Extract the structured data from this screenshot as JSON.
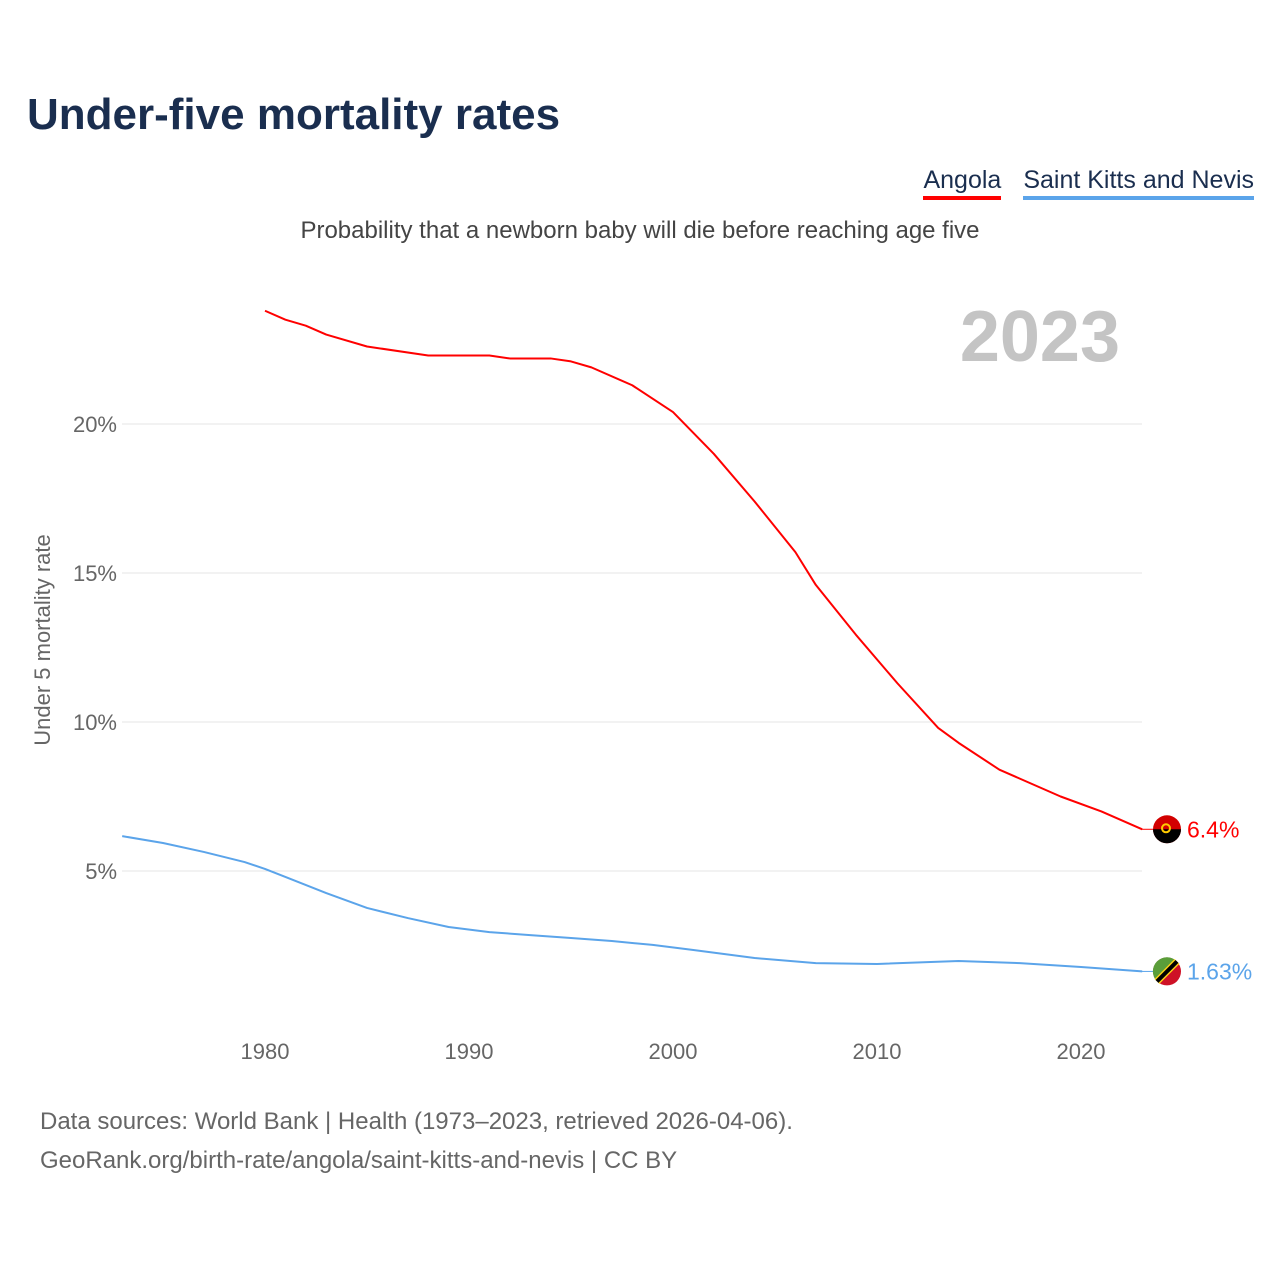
{
  "title": "Under-five mortality rates",
  "subtitle": "Probability that a newborn baby will die before reaching age five",
  "year_label": "2023",
  "sources": [
    "Data sources: World Bank | Health (1973–2023, retrieved 2026-04-06).",
    "GeoRank.org/birth-rate/angola/saint-kitts-and-nevis | CC BY"
  ],
  "chart_data": {
    "type": "line",
    "title": "Under-five mortality rates",
    "xlabel": "",
    "ylabel": "Under 5 mortality rate",
    "xlim": [
      1973,
      2023
    ],
    "ylim": [
      0,
      23.8
    ],
    "xticks": [
      1980,
      1990,
      2000,
      2010,
      2020
    ],
    "yticks": [
      {
        "v": 5,
        "label": "5%"
      },
      {
        "v": 10,
        "label": "10%"
      },
      {
        "v": 15,
        "label": "15%"
      },
      {
        "v": 20,
        "label": "20%"
      }
    ],
    "legend": "top-right",
    "series": [
      {
        "name": "Angola",
        "color": "#ff0000",
        "end_label": "6.4%",
        "x": [
          1980,
          1981,
          1982,
          1983,
          1985,
          1988,
          1991,
          1992,
          1994,
          1995,
          1996,
          1998,
          2000,
          2001,
          2002,
          2004,
          2006,
          2007,
          2009,
          2011,
          2013,
          2014,
          2016,
          2017,
          2019,
          2021,
          2023
        ],
        "y": [
          23.8,
          23.5,
          23.3,
          23.0,
          22.6,
          22.3,
          22.3,
          22.2,
          22.2,
          22.1,
          21.9,
          21.3,
          20.4,
          19.7,
          19.0,
          17.4,
          15.7,
          14.6,
          12.9,
          11.3,
          9.8,
          9.3,
          8.4,
          8.1,
          7.5,
          7.0,
          6.4
        ]
      },
      {
        "name": "Saint Kitts and Nevis",
        "color": "#5ba4ea",
        "end_label": "1.63%",
        "x": [
          1973,
          1975,
          1977,
          1979,
          1980,
          1981,
          1983,
          1985,
          1987,
          1989,
          1991,
          1993,
          1995,
          1997,
          1999,
          2001,
          2004,
          2007,
          2010,
          2014,
          2017,
          2020,
          2023
        ],
        "y": [
          6.17,
          5.94,
          5.64,
          5.3,
          5.07,
          4.8,
          4.26,
          3.76,
          3.42,
          3.12,
          2.95,
          2.85,
          2.75,
          2.65,
          2.52,
          2.35,
          2.08,
          1.91,
          1.88,
          1.98,
          1.91,
          1.78,
          1.63
        ]
      }
    ]
  }
}
